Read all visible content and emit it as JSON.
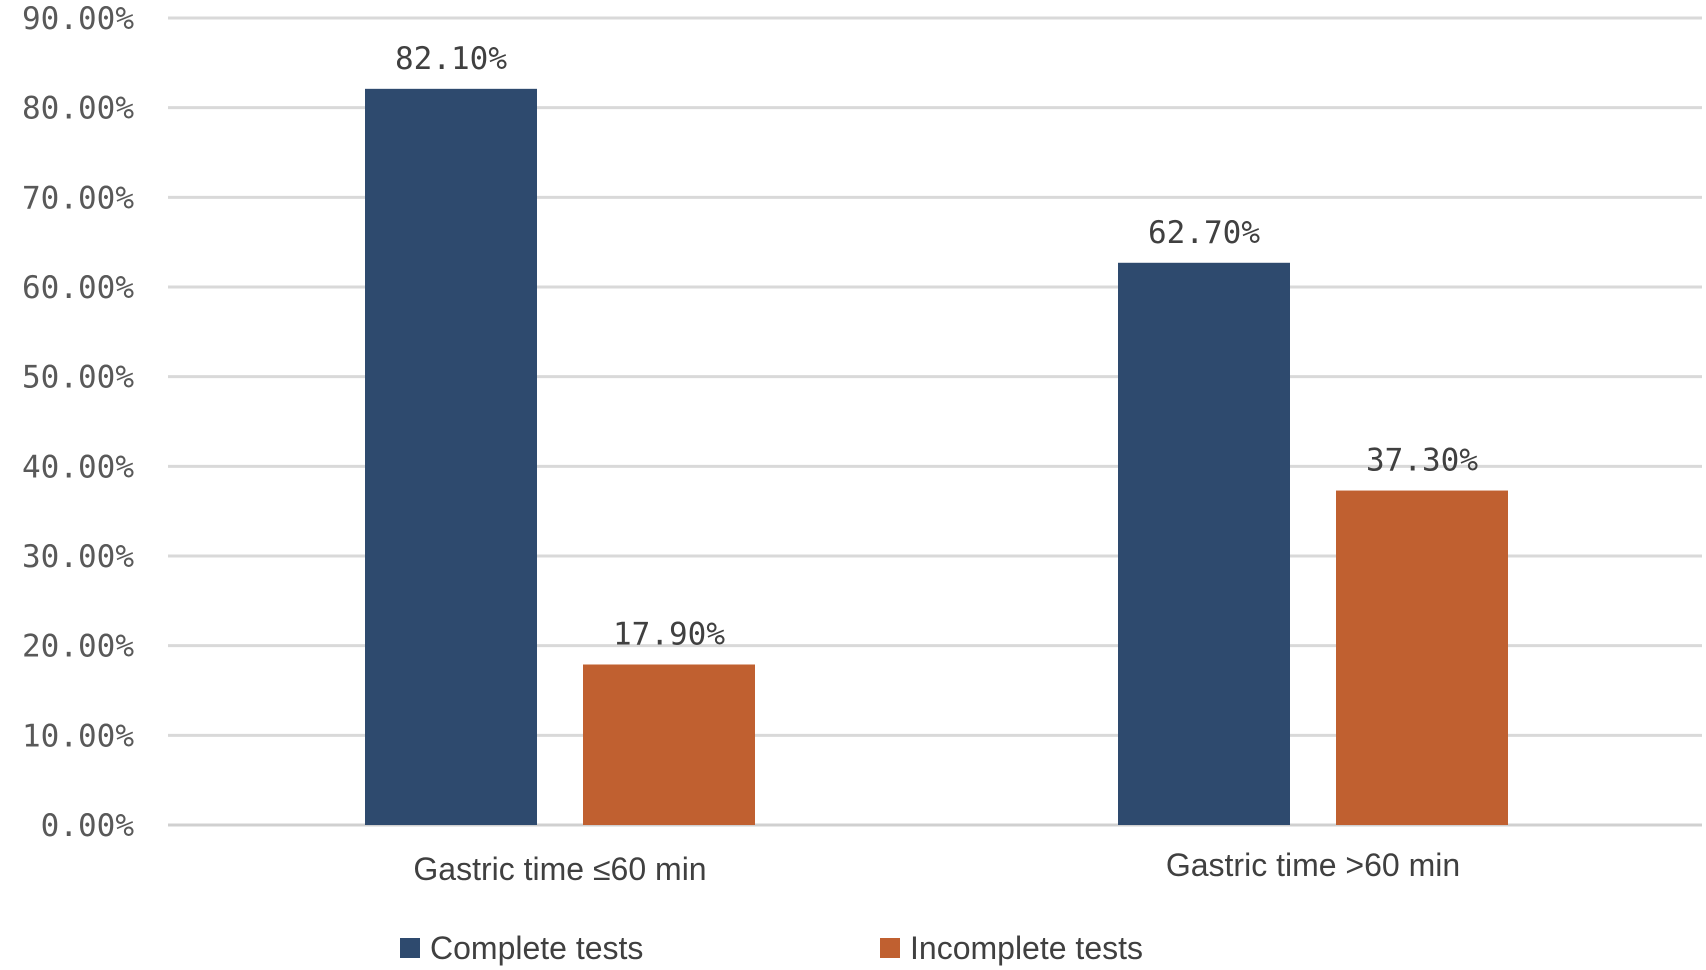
{
  "chart_data": {
    "type": "bar",
    "categories": [
      "Gastric time ≤60 min",
      "Gastric time >60 min"
    ],
    "series": [
      {
        "name": "Complete tests",
        "values": [
          82.1,
          62.7
        ],
        "labels": [
          "82.10%",
          "62.70%"
        ],
        "color": "#2e4a6e"
      },
      {
        "name": "Incomplete tests",
        "values": [
          17.9,
          37.3
        ],
        "labels": [
          "17.90%",
          "37.30%"
        ],
        "color": "#c06030"
      }
    ],
    "ylim": [
      0,
      90
    ],
    "yticks": [
      0,
      10,
      20,
      30,
      40,
      50,
      60,
      70,
      80,
      90
    ],
    "ytick_labels": [
      "0.00%",
      "10.00%",
      "20.00%",
      "30.00%",
      "40.00%",
      "50.00%",
      "60.00%",
      "70.00%",
      "80.00%",
      "90.00%"
    ],
    "grid": true,
    "legend_position": "bottom",
    "title": "",
    "xlabel": "",
    "ylabel": ""
  }
}
